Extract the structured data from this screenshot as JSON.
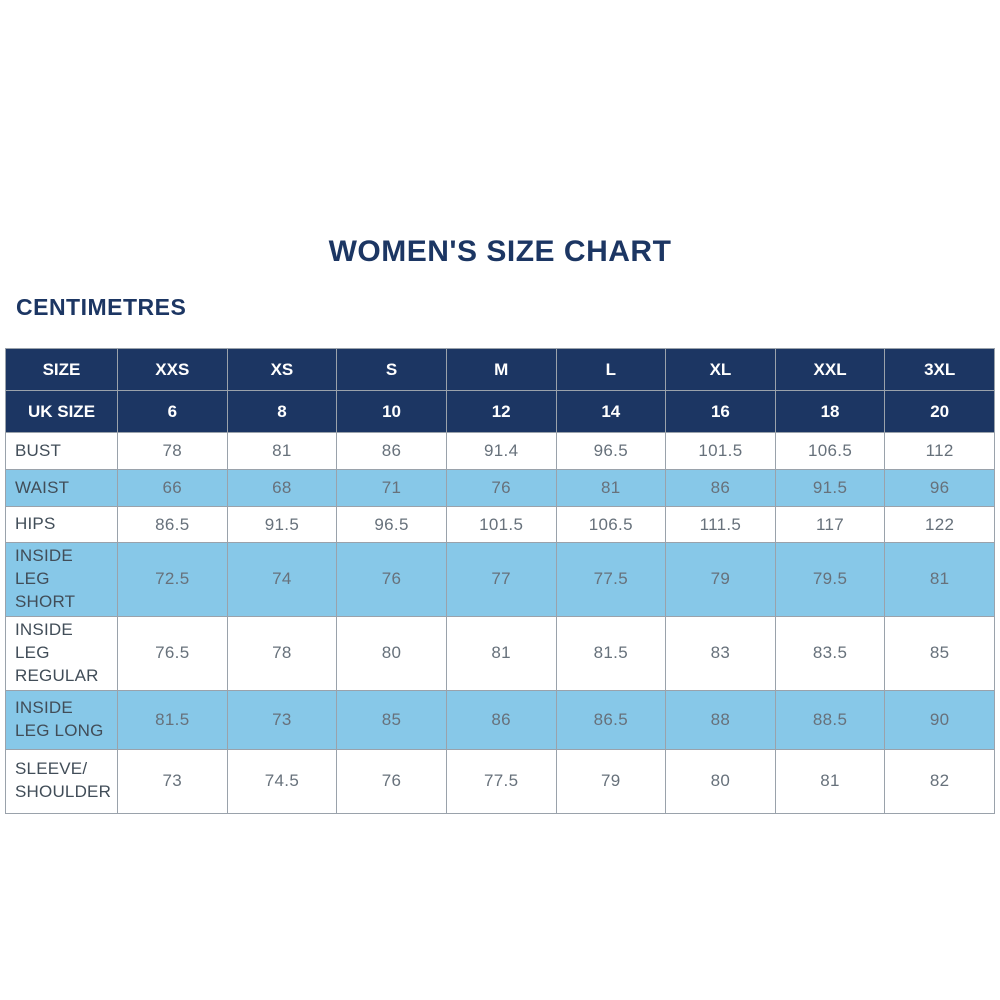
{
  "title": "WOMEN'S SIZE CHART",
  "subtitle": "CENTIMETRES",
  "colors": {
    "navy": "#1c3663",
    "light_blue": "#87c8e8",
    "label_text": "#414d58",
    "value_text": "#67717b",
    "border": "#9aa2ab",
    "header_border": "#b9c0c7"
  },
  "chart_data": {
    "type": "table",
    "title": "WOMEN'S SIZE CHART",
    "unit_label": "CENTIMETRES",
    "header_rows": [
      {
        "label": "SIZE",
        "values": [
          "XXS",
          "XS",
          "S",
          "M",
          "L",
          "XL",
          "XXL",
          "3XL"
        ]
      },
      {
        "label": "UK SIZE",
        "values": [
          "6",
          "8",
          "10",
          "12",
          "14",
          "16",
          "18",
          "20"
        ]
      }
    ],
    "rows": [
      {
        "label": "BUST",
        "highlight": false,
        "values": [
          "78",
          "81",
          "86",
          "91.4",
          "96.5",
          "101.5",
          "106.5",
          "112"
        ]
      },
      {
        "label": "WAIST",
        "highlight": true,
        "values": [
          "66",
          "68",
          "71",
          "76",
          "81",
          "86",
          "91.5",
          "96"
        ]
      },
      {
        "label": "HIPS",
        "highlight": false,
        "values": [
          "86.5",
          "91.5",
          "96.5",
          "101.5",
          "106.5",
          "111.5",
          "117",
          "122"
        ]
      },
      {
        "label": "INSIDE LEG SHORT",
        "highlight": true,
        "values": [
          "72.5",
          "74",
          "76",
          "77",
          "77.5",
          "79",
          "79.5",
          "81"
        ]
      },
      {
        "label": "INSIDE LEG REGULAR",
        "highlight": false,
        "values": [
          "76.5",
          "78",
          "80",
          "81",
          "81.5",
          "83",
          "83.5",
          "85"
        ]
      },
      {
        "label": "INSIDE LEG LONG",
        "highlight": true,
        "values": [
          "81.5",
          "73",
          "85",
          "86",
          "86.5",
          "88",
          "88.5",
          "90"
        ]
      },
      {
        "label": "SLEEVE/ SHOULDER",
        "highlight": false,
        "values": [
          "73",
          "74.5",
          "76",
          "77.5",
          "79",
          "80",
          "81",
          "82"
        ]
      }
    ]
  }
}
